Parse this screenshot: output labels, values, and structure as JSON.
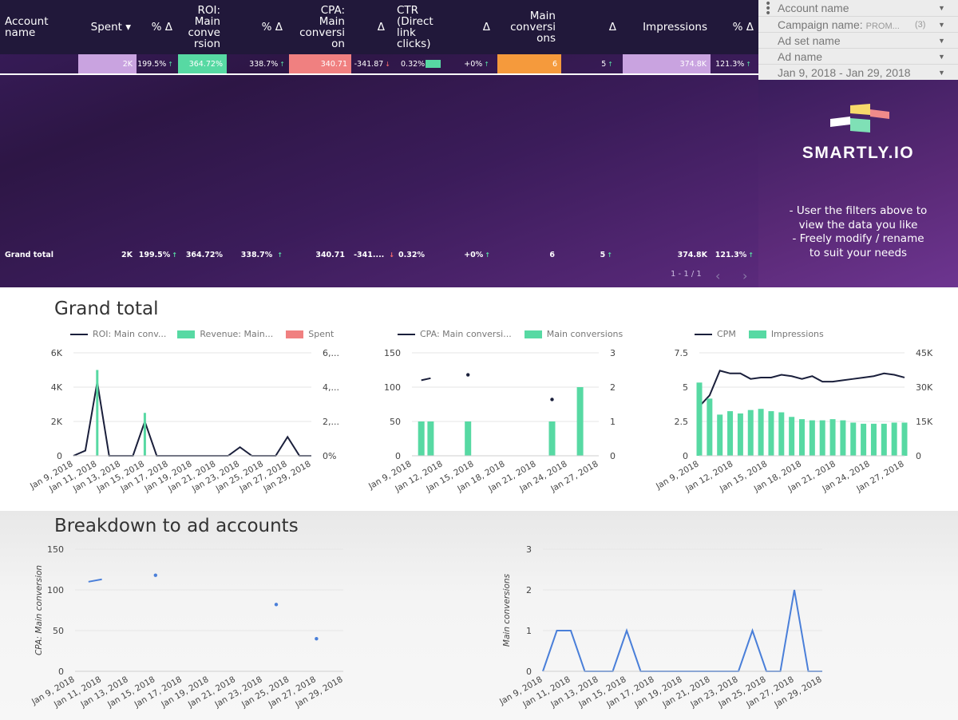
{
  "table": {
    "headers": [
      {
        "label": "Account name"
      },
      {
        "label": "Spent ▾"
      },
      {
        "label": "% Δ"
      },
      {
        "label": "ROI: Main conve rsion"
      },
      {
        "label": "% Δ"
      },
      {
        "label": "CPA: Main conversi on"
      },
      {
        "label": "Δ"
      },
      {
        "label": "CTR (Direct link clicks)"
      },
      {
        "label": "Δ"
      },
      {
        "label": "Main conversi ons"
      },
      {
        "label": "Δ"
      },
      {
        "label": "Impressions"
      },
      {
        "label": "% Δ"
      }
    ],
    "row": {
      "spent": "2K",
      "spent_delta": "199.5%",
      "roi": "364.72%",
      "roi_delta": "338.7%",
      "cpa": "340.71",
      "cpa_delta": "-341.87",
      "ctr": "0.32%",
      "ctr_delta": "+0%",
      "conv": "6",
      "conv_delta": "5",
      "impr": "374.8K",
      "impr_delta": "121.3%"
    },
    "total": {
      "label": "Grand total",
      "spent": "2K",
      "spent_delta": "199.5%",
      "roi": "364.72%",
      "roi_delta": "338.7%",
      "cpa": "340.71",
      "cpa_delta": "-341....",
      "ctr": "0.32%",
      "ctr_delta": "+0%",
      "conv": "6",
      "conv_delta": "5",
      "impr": "374.8K",
      "impr_delta": "121.3%"
    },
    "pager": "1 - 1 / 1",
    "colors": {
      "spent": "#c9a3e0",
      "roi": "#57d9a3",
      "cpa": "#f08080",
      "conv": "#f59a3c",
      "impr": "#c9a3e0",
      "ctr_bar": "#57d9a3"
    }
  },
  "filters": [
    {
      "label": "Account name",
      "value": "",
      "count": ""
    },
    {
      "label": "Campaign name:",
      "value": "PROM...",
      "count": "(3)"
    },
    {
      "label": "Ad set name",
      "value": "",
      "count": ""
    },
    {
      "label": "Ad name",
      "value": "",
      "count": ""
    },
    {
      "label": "Jan 9, 2018 - Jan 29, 2018",
      "value": "",
      "count": ""
    }
  ],
  "brand": {
    "name": "SMARTLY.IO",
    "note1": "- User the filters above to",
    "note2": "view the data you like",
    "note3": "- Freely modify / rename",
    "note4": "to suit your needs"
  },
  "sections": {
    "grand_total": "Grand total",
    "breakdown": "Breakdown to ad accounts"
  },
  "chart_data": [
    {
      "type": "bar",
      "title": "",
      "legend": [
        "ROI: Main conv...",
        "Revenue: Main...",
        "Spent"
      ],
      "x_ticks": [
        "Jan 9, 2018",
        "Jan 11, 2018",
        "Jan 13, 2018",
        "Jan 15, 2018",
        "Jan 17, 2018",
        "Jan 19, 2018",
        "Jan 21, 2018",
        "Jan 23, 2018",
        "Jan 25, 2018",
        "Jan 27, 2018",
        "Jan 29, 2018"
      ],
      "y_ticks_left": [
        "0",
        "2K",
        "4K",
        "6K"
      ],
      "y_ticks_right": [
        "0%",
        "2,...",
        "4,...",
        "6,..."
      ],
      "x": [
        9,
        10,
        11,
        12,
        13,
        14,
        15,
        16,
        17,
        18,
        19,
        20,
        21,
        22,
        23,
        24,
        25,
        26,
        27,
        28,
        29
      ],
      "series": [
        {
          "name": "ROI: Main conv...",
          "type": "line",
          "values": [
            0,
            300,
            4300,
            0,
            0,
            0,
            2000,
            0,
            0,
            0,
            0,
            0,
            0,
            0,
            500,
            0,
            0,
            0,
            1100,
            0,
            0
          ]
        },
        {
          "name": "Revenue: Main...",
          "type": "bar",
          "values": [
            0,
            0,
            5000,
            0,
            0,
            0,
            2500,
            0,
            0,
            0,
            0,
            0,
            0,
            0,
            0,
            0,
            0,
            0,
            0,
            0,
            0
          ]
        },
        {
          "name": "Spent",
          "type": "bar",
          "values": [
            0,
            0,
            0,
            0,
            0,
            0,
            0,
            0,
            0,
            0,
            0,
            0,
            0,
            0,
            0,
            0,
            0,
            0,
            0,
            0,
            0
          ]
        }
      ],
      "ylim": [
        0,
        6000
      ]
    },
    {
      "type": "bar",
      "title": "",
      "legend": [
        "CPA: Main conversi...",
        "Main conversions"
      ],
      "x_ticks": [
        "Jan 9, 2018",
        "Jan 12, 2018",
        "Jan 15, 2018",
        "Jan 18, 2018",
        "Jan 21, 2018",
        "Jan 24, 2018",
        "Jan 27, 2018"
      ],
      "y_ticks_left": [
        "0",
        "50",
        "100",
        "150"
      ],
      "y_ticks_right": [
        "0",
        "1",
        "2",
        "3"
      ],
      "x": [
        9,
        10,
        11,
        12,
        13,
        14,
        15,
        16,
        17,
        18,
        19,
        20,
        21,
        22,
        23,
        24,
        25,
        26,
        27,
        28,
        29
      ],
      "series": [
        {
          "name": "CPA: Main conversi...",
          "type": "line",
          "values": [
            null,
            110,
            113,
            null,
            null,
            null,
            118,
            null,
            null,
            null,
            null,
            null,
            null,
            null,
            null,
            82,
            null,
            null,
            40,
            null,
            null
          ]
        },
        {
          "name": "Main conversions",
          "type": "bar",
          "values": [
            0,
            1,
            1,
            0,
            0,
            0,
            1,
            0,
            0,
            0,
            0,
            0,
            0,
            0,
            0,
            1,
            0,
            0,
            2,
            0,
            0
          ]
        }
      ],
      "ylim": [
        0,
        150
      ],
      "ylim_right": [
        0,
        3
      ]
    },
    {
      "type": "bar",
      "title": "",
      "legend": [
        "CPM",
        "Impressions"
      ],
      "x_ticks": [
        "Jan 9, 2018",
        "Jan 12, 2018",
        "Jan 15, 2018",
        "Jan 18, 2018",
        "Jan 21, 2018",
        "Jan 24, 2018",
        "Jan 27, 2018"
      ],
      "y_ticks_left": [
        "0",
        "2.5",
        "5",
        "7.5"
      ],
      "y_ticks_right": [
        "0",
        "15K",
        "30K",
        "45K"
      ],
      "x": [
        9,
        10,
        11,
        12,
        13,
        14,
        15,
        16,
        17,
        18,
        19,
        20,
        21,
        22,
        23,
        24,
        25,
        26,
        27,
        28,
        29
      ],
      "series": [
        {
          "name": "CPM",
          "type": "line",
          "values": [
            3.6,
            4.4,
            6.2,
            6.0,
            6.0,
            5.6,
            5.7,
            5.7,
            5.9,
            5.8,
            5.6,
            5.8,
            5.4,
            5.4,
            5.5,
            5.6,
            5.7,
            5.8,
            6.0,
            5.9,
            5.7
          ]
        },
        {
          "name": "Impressions",
          "type": "bar",
          "values": [
            32000,
            25000,
            18000,
            19500,
            18500,
            20000,
            20500,
            19500,
            19000,
            17000,
            16000,
            15500,
            15500,
            16000,
            15500,
            14500,
            14000,
            14000,
            14000,
            14500,
            14500
          ]
        }
      ],
      "ylim": [
        0,
        7.5
      ],
      "ylim_right": [
        0,
        45000
      ]
    },
    {
      "type": "line",
      "title": "",
      "ylabel": "CPA: Main conversion",
      "x_ticks": [
        "Jan 9, 2018",
        "Jan 11, 2018",
        "Jan 13, 2018",
        "Jan 15, 2018",
        "Jan 17, 2018",
        "Jan 19, 2018",
        "Jan 21, 2018",
        "Jan 23, 2018",
        "Jan 25, 2018",
        "Jan 27, 2018",
        "Jan 29, 2018"
      ],
      "y_ticks": [
        "0",
        "50",
        "100",
        "150"
      ],
      "x": [
        9,
        10,
        11,
        12,
        13,
        14,
        15,
        16,
        17,
        18,
        19,
        20,
        21,
        22,
        23,
        24,
        25,
        26,
        27,
        28,
        29
      ],
      "series": [
        {
          "name": "",
          "values": [
            null,
            110,
            113,
            null,
            null,
            null,
            118,
            null,
            null,
            null,
            null,
            null,
            null,
            null,
            null,
            82,
            null,
            null,
            40,
            null,
            null
          ]
        }
      ],
      "ylim": [
        0,
        150
      ]
    },
    {
      "type": "line",
      "title": "",
      "ylabel": "Main conversions",
      "x_ticks": [
        "Jan 9, 2018",
        "Jan 11, 2018",
        "Jan 13, 2018",
        "Jan 15, 2018",
        "Jan 17, 2018",
        "Jan 19, 2018",
        "Jan 21, 2018",
        "Jan 23, 2018",
        "Jan 25, 2018",
        "Jan 27, 2018",
        "Jan 29, 2018"
      ],
      "y_ticks": [
        "0",
        "1",
        "2",
        "3"
      ],
      "x": [
        9,
        10,
        11,
        12,
        13,
        14,
        15,
        16,
        17,
        18,
        19,
        20,
        21,
        22,
        23,
        24,
        25,
        26,
        27,
        28,
        29
      ],
      "series": [
        {
          "name": "",
          "values": [
            0,
            1,
            1,
            0,
            0,
            0,
            1,
            0,
            0,
            0,
            0,
            0,
            0,
            0,
            0,
            1,
            0,
            0,
            2,
            0,
            0
          ]
        }
      ],
      "ylim": [
        0,
        3
      ]
    }
  ]
}
